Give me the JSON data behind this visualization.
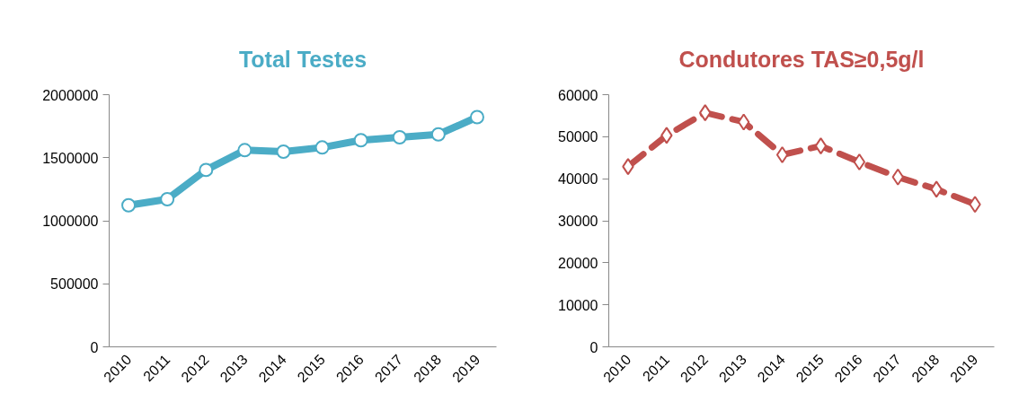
{
  "chart_data": [
    {
      "type": "line",
      "title": "Total Testes",
      "categories": [
        "2010",
        "2011",
        "2012",
        "2013",
        "2014",
        "2015",
        "2016",
        "2017",
        "2018",
        "2019"
      ],
      "series": [
        {
          "color": "#4bacc6",
          "values": [
            1123000,
            1171000,
            1403000,
            1560000,
            1548000,
            1581000,
            1639000,
            1662000,
            1685000,
            1822000
          ]
        }
      ],
      "ylim": [
        0,
        2000000
      ],
      "yticks": [
        0,
        500000,
        1000000,
        1500000,
        2000000
      ],
      "marker": "circle",
      "line_style": "solid",
      "grid": false
    },
    {
      "type": "line",
      "title": "Condutores TAS≥0,5g/l",
      "categories": [
        "2010",
        "2011",
        "2012",
        "2013",
        "2014",
        "2015",
        "2016",
        "2017",
        "2018",
        "2019"
      ],
      "series": [
        {
          "color": "#c0504d",
          "values": [
            42900,
            50300,
            55700,
            53500,
            45700,
            47800,
            44000,
            40400,
            37500,
            33900
          ]
        }
      ],
      "ylim": [
        0,
        60000
      ],
      "yticks": [
        0,
        10000,
        20000,
        30000,
        40000,
        50000,
        60000
      ],
      "marker": "diamond",
      "line_style": "dashed",
      "grid": false
    }
  ]
}
